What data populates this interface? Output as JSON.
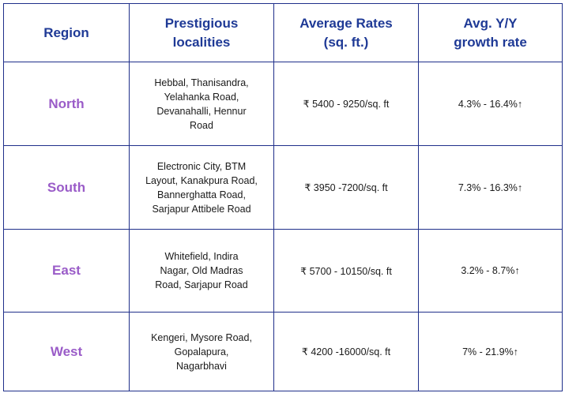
{
  "headers": {
    "region": "Region",
    "localities": [
      "Prestigious",
      "localities"
    ],
    "rates": [
      "Average Rates",
      "(sq. ft.)"
    ],
    "growth": [
      "Avg. Y/Y",
      "growth rate"
    ]
  },
  "rows": [
    {
      "region": "North",
      "localities": [
        "Hebbal, Thanisandra,",
        "Yelahanka Road,",
        "Devanahalli, Hennur",
        "Road"
      ],
      "rate": "₹ 5400 - 9250/sq. ft",
      "growth": "4.3% - 16.4%↑"
    },
    {
      "region": "South",
      "localities": [
        "Electronic City, BTM",
        "Layout, Kanakpura Road,",
        "Bannerghatta Road,",
        "Sarjapur Attibele Road"
      ],
      "rate": "₹ 3950 -7200/sq. ft",
      "growth": "7.3% - 16.3%↑"
    },
    {
      "region": "East",
      "localities": [
        "Whitefield, Indira",
        "Nagar, Old Madras",
        "Road, Sarjapur Road"
      ],
      "rate": "₹ 5700 - 10150/sq. ft",
      "growth": "3.2% - 8.7%↑"
    },
    {
      "region": "West",
      "localities": [
        "Kengeri, Mysore Road,",
        "Gopalapura,",
        "Nagarbhavi"
      ],
      "rate": "₹ 4200 -16000/sq. ft",
      "growth": "7% - 21.9%↑"
    }
  ],
  "colors": {
    "border": "#1f2f8a",
    "header_text": "#1f3a96",
    "region_text": "#9a5cc8",
    "body_text": "#1a1a1a"
  }
}
